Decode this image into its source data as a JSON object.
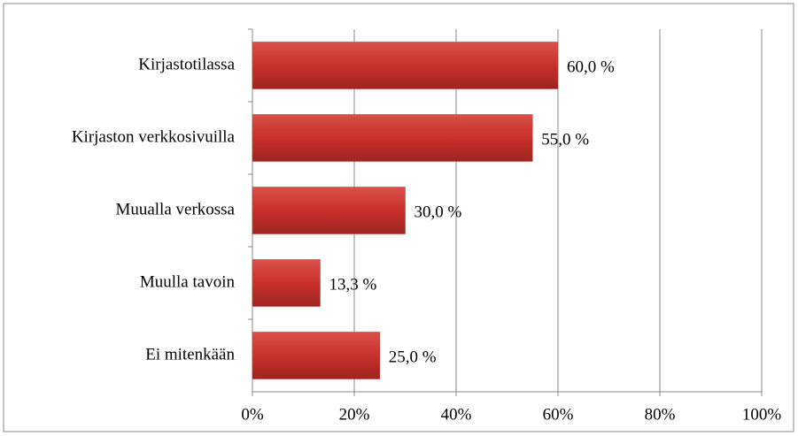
{
  "chart_data": {
    "type": "hbar",
    "categories": [
      "Kirjastotilassa",
      "Kirjaston verkkosivuilla",
      "Muualla verkossa",
      "Muulla tavoin",
      "Ei mitenkään"
    ],
    "values": [
      60,
      55,
      30,
      13.3,
      25
    ],
    "value_labels": [
      "60,0 %",
      "55,0 %",
      "30,0 %",
      "13,3 %",
      "25,0 %"
    ],
    "color": "#c0392b",
    "xlim": [
      0,
      100
    ],
    "xticks": [
      {
        "value": 0,
        "label": "0%"
      },
      {
        "value": 20,
        "label": "20%"
      },
      {
        "value": 40,
        "label": "40%"
      },
      {
        "value": 60,
        "label": "60%"
      },
      {
        "value": 80,
        "label": "80%"
      },
      {
        "value": 100,
        "label": "100%"
      }
    ],
    "grid": true
  }
}
